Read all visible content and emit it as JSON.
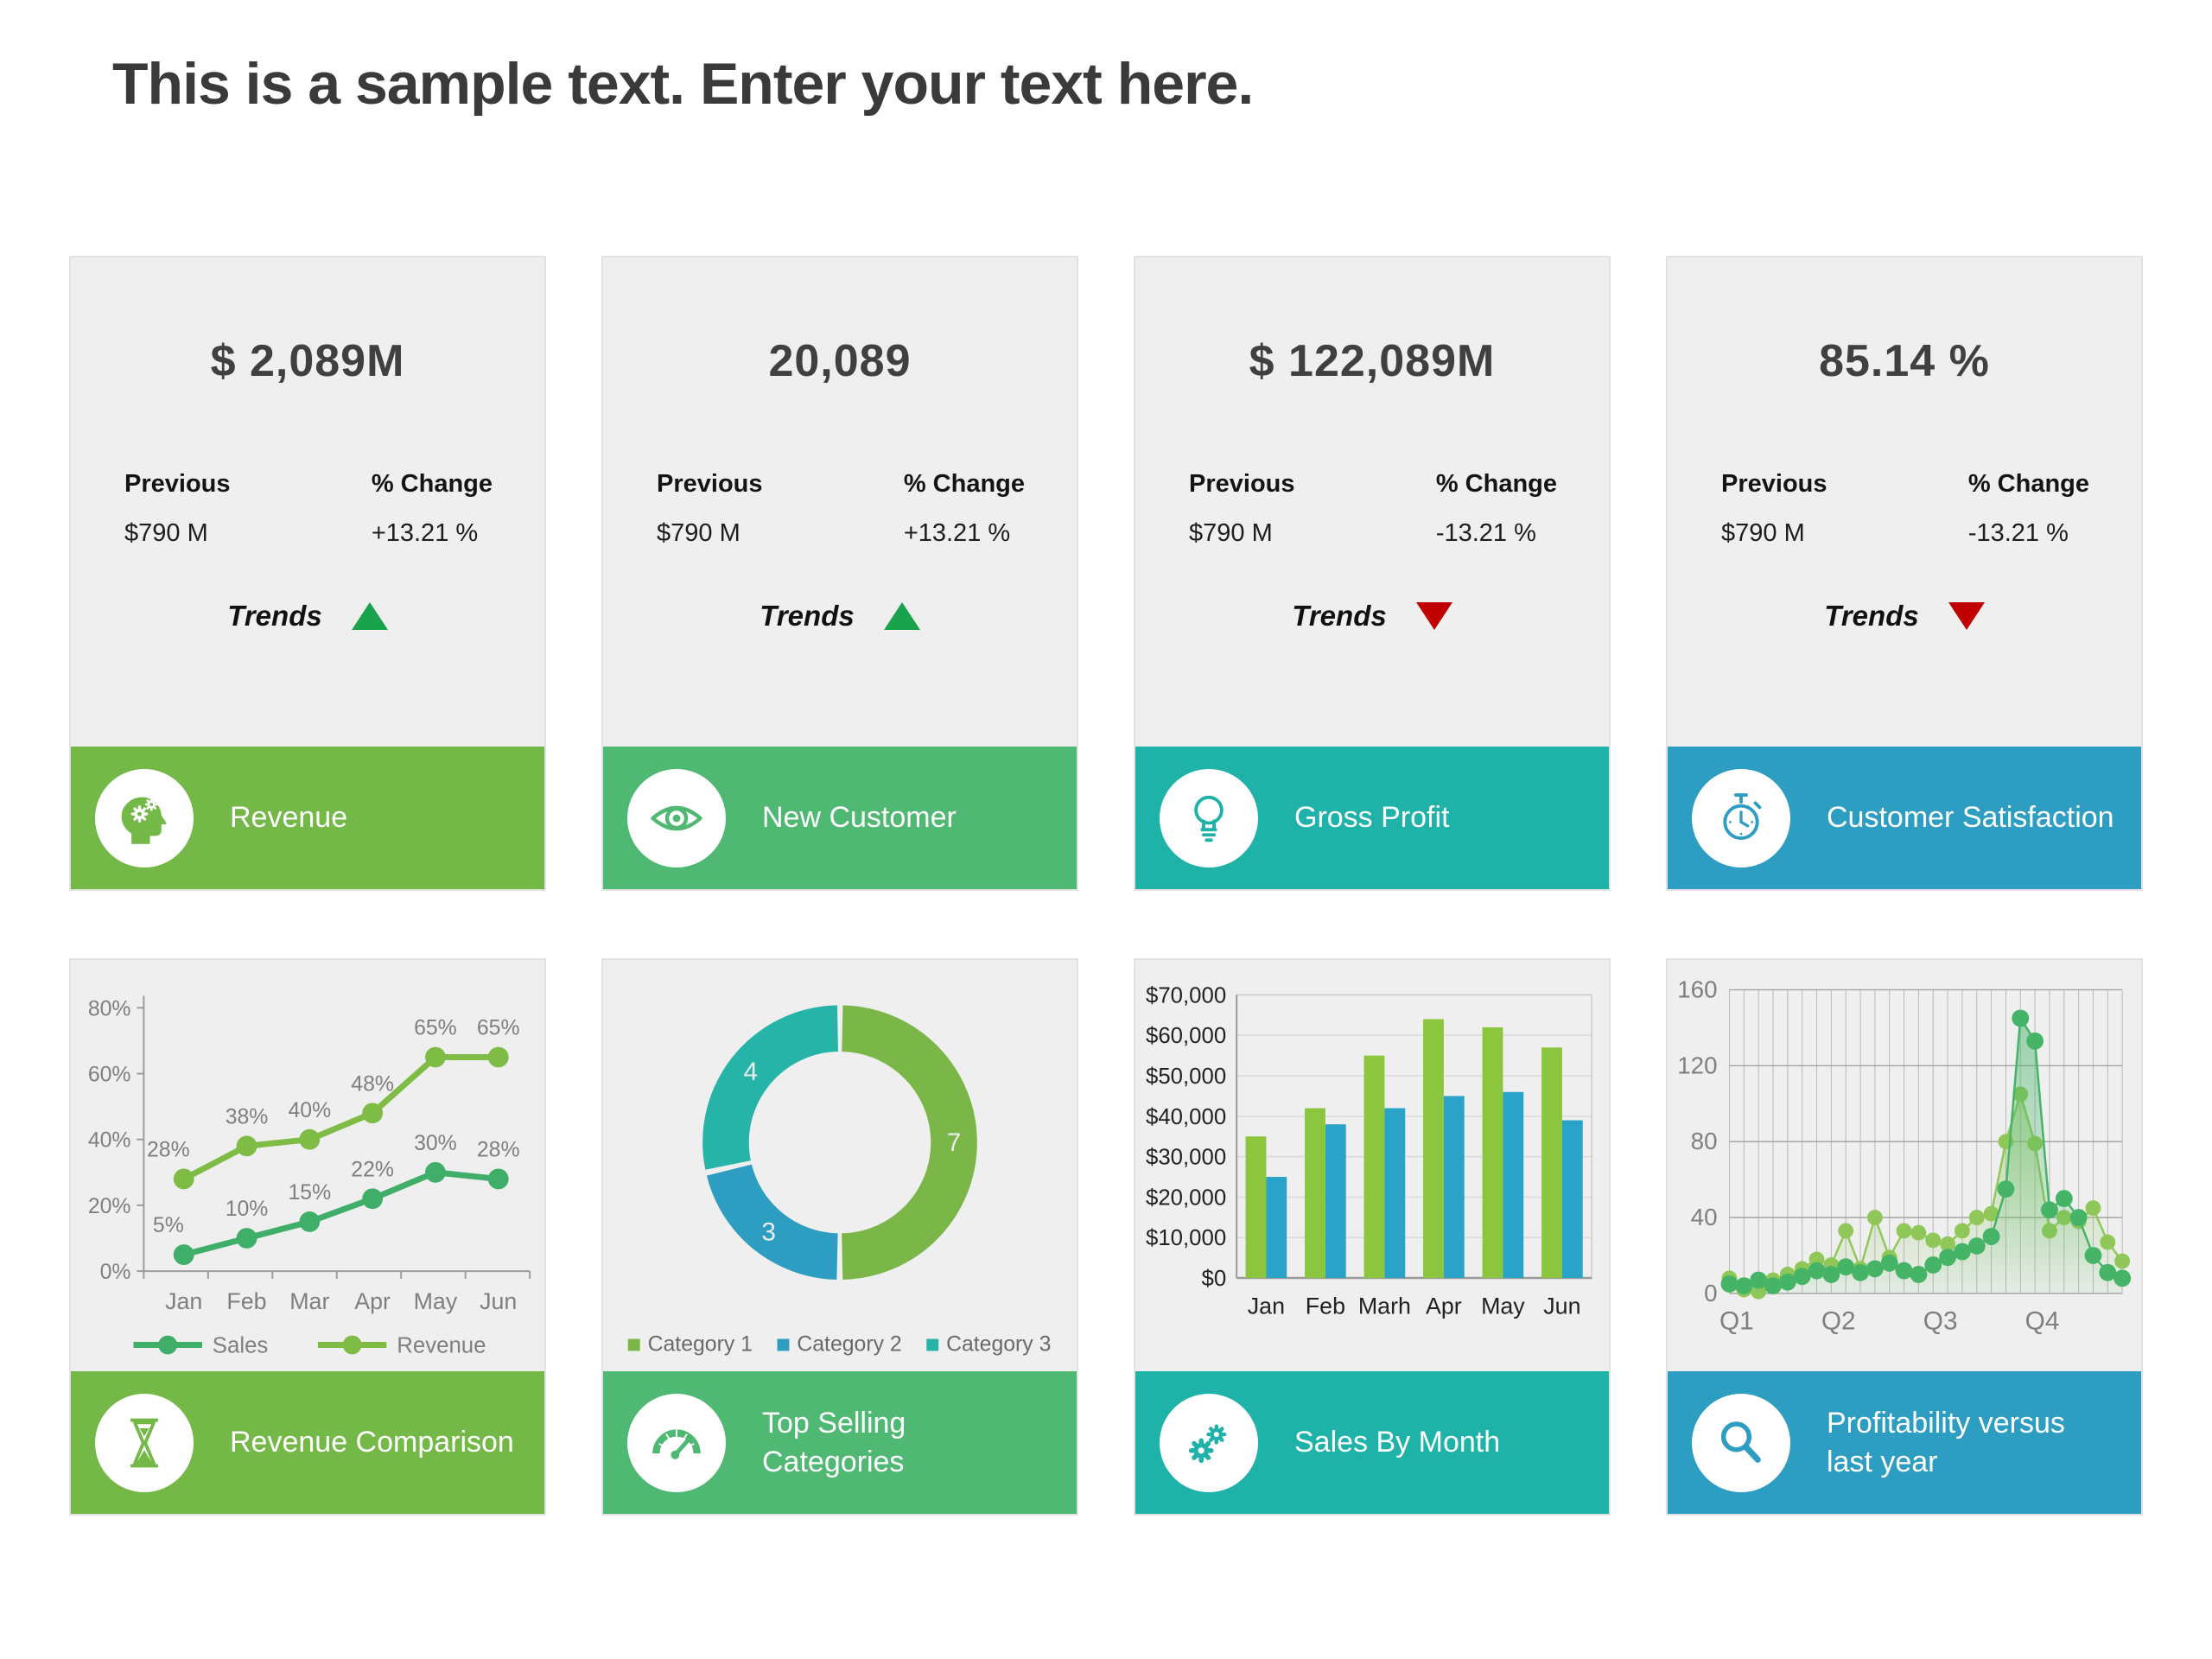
{
  "page": {
    "title": "This is a sample text. Enter your text here."
  },
  "kpi_cards": [
    {
      "value": "$ 2,089M",
      "previous_label": "Previous",
      "previous_value": "$790 M",
      "change_label": "% Change",
      "change_value": "+13.21 %",
      "trends_label": "Trends",
      "trend": "up",
      "footer": {
        "label": "Revenue",
        "icon": "head-gears-icon",
        "color": "#74b847"
      }
    },
    {
      "value": "20,089",
      "previous_label": "Previous",
      "previous_value": "$790 M",
      "change_label": "% Change",
      "change_value": "+13.21 %",
      "trends_label": "Trends",
      "trend": "up",
      "footer": {
        "label": "New Customer",
        "icon": "eye-icon",
        "color": "#4fb973"
      }
    },
    {
      "value": "$ 122,089M",
      "previous_label": "Previous",
      "previous_value": "$790 M",
      "change_label": "% Change",
      "change_value": "-13.21 %",
      "trends_label": "Trends",
      "trend": "down",
      "footer": {
        "label": "Gross Profit",
        "icon": "lightbulb-icon",
        "color": "#1eb2a9"
      }
    },
    {
      "value": "85.14 %",
      "previous_label": "Previous",
      "previous_value": "$790 M",
      "change_label": "% Change",
      "change_value": "-13.21 %",
      "trends_label": "Trends",
      "trend": "down",
      "footer": {
        "label": "Customer Satisfaction",
        "icon": "stopwatch-icon",
        "color": "#2d9dc2"
      }
    }
  ],
  "chart_cards": [
    {
      "footer": {
        "label": "Revenue Comparison",
        "icon": "hourglass-icon",
        "color": "#74b847"
      }
    },
    {
      "footer": {
        "label": "Top Selling Categories",
        "icon": "gauge-icon",
        "color": "#4fb973"
      }
    },
    {
      "footer": {
        "label": "Sales By Month",
        "icon": "gears-icon",
        "color": "#1eb2a9"
      }
    },
    {
      "footer": {
        "label": "Profitability versus last year",
        "icon": "magnifier-icon",
        "color": "#2d9dc2"
      }
    }
  ],
  "chart_data": [
    {
      "type": "line",
      "title": "Revenue Comparison",
      "categories": [
        "Jan",
        "Feb",
        "Mar",
        "Apr",
        "May",
        "Jun"
      ],
      "series": [
        {
          "name": "Sales",
          "color": "#3fae68",
          "values": [
            5,
            10,
            15,
            22,
            30,
            28
          ],
          "labels": [
            "5%",
            "10%",
            "15%",
            "22%",
            "30%",
            "28%"
          ]
        },
        {
          "name": "Revenue",
          "color": "#7ebc45",
          "values": [
            28,
            38,
            40,
            48,
            65,
            65
          ],
          "labels": [
            "28%",
            "38%",
            "40%",
            "48%",
            "65%",
            "65%"
          ]
        }
      ],
      "ylim": [
        0,
        80
      ],
      "yticks": [
        0,
        20,
        40,
        60,
        80
      ],
      "ytick_labels": [
        "0%",
        "20%",
        "40%",
        "60%",
        "80%"
      ],
      "legend_position": "bottom",
      "grid": false
    },
    {
      "type": "donut",
      "title": "Top Selling Categories",
      "legend": [
        "Category 1",
        "Category 2",
        "Category 3"
      ],
      "values": [
        7,
        3,
        4
      ],
      "slice_labels": [
        "7",
        "3",
        "4"
      ],
      "colors": [
        "#7ab648",
        "#2d9dc2",
        "#26b3a8"
      ],
      "legend_position": "bottom"
    },
    {
      "type": "bar",
      "title": "Sales By Month",
      "categories": [
        "Jan",
        "Feb",
        "Marh",
        "Apr",
        "May",
        "Jun"
      ],
      "series": [
        {
          "name": "series-green",
          "color": "#8cc63f",
          "values": [
            35000,
            42000,
            55000,
            64000,
            62000,
            57000
          ]
        },
        {
          "name": "series-blue",
          "color": "#2aa3c8",
          "values": [
            25000,
            38000,
            42000,
            45000,
            46000,
            39000
          ]
        }
      ],
      "ylim": [
        0,
        70000
      ],
      "yticks": [
        0,
        10000,
        20000,
        30000,
        40000,
        50000,
        60000,
        70000
      ],
      "ytick_labels": [
        "$0",
        "$10,000",
        "$20,000",
        "$30,000",
        "$40,000",
        "$50,000",
        "$60,000",
        "$70,000"
      ],
      "grid": true,
      "legend_position": "none"
    },
    {
      "type": "scatter",
      "title": "Profitability versus last year",
      "x_labels": [
        "Q1",
        "Q2",
        "Q3",
        "Q4"
      ],
      "series": [
        {
          "name": "series-light",
          "color": "#8fc858",
          "values": [
            8,
            2,
            1,
            7,
            10,
            13,
            18,
            15,
            33,
            13,
            40,
            19,
            33,
            32,
            28,
            26,
            33,
            40,
            42,
            80,
            105,
            79,
            33,
            40,
            38,
            45,
            27,
            17
          ]
        },
        {
          "name": "series-dark",
          "color": "#45b466",
          "values": [
            5,
            4,
            7,
            4,
            6,
            9,
            12,
            10,
            14,
            11,
            13,
            16,
            12,
            10,
            15,
            19,
            22,
            25,
            30,
            55,
            145,
            133,
            44,
            50,
            40,
            20,
            11,
            8
          ]
        }
      ],
      "ylim": [
        0,
        160
      ],
      "yticks": [
        0,
        40,
        80,
        120,
        160
      ],
      "ytick_labels": [
        "0",
        "40",
        "80",
        "120",
        "160"
      ],
      "grid": true,
      "area_fill": true,
      "legend_position": "none"
    }
  ]
}
